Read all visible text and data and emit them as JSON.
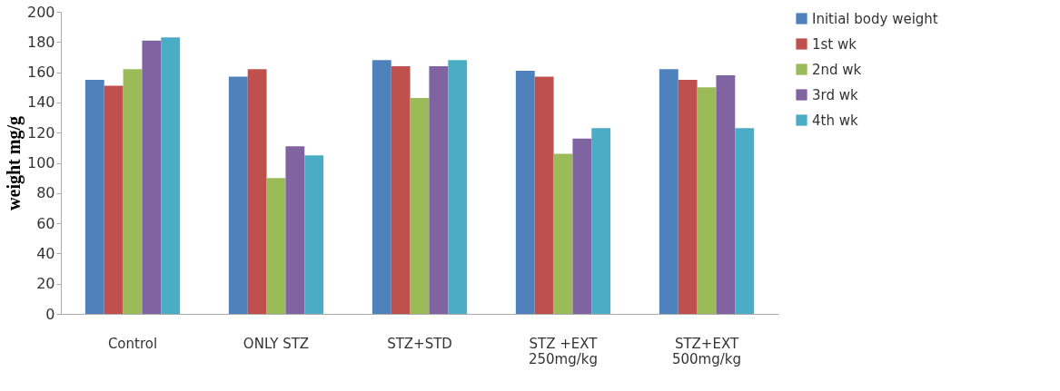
{
  "chart_data": {
    "type": "bar",
    "ylabel": "weight mg/g",
    "categories": [
      "Control",
      "ONLY STZ",
      "STZ+STD",
      "STZ +EXT\n250mg/kg",
      "STZ+EXT\n500mg/kg"
    ],
    "series": [
      {
        "name": "Initial body weight",
        "color": "#4f81bd",
        "values": [
          155,
          157,
          168,
          161,
          162
        ]
      },
      {
        "name": "1st wk",
        "color": "#c0504d",
        "values": [
          151,
          162,
          164,
          157,
          155
        ]
      },
      {
        "name": "2nd wk",
        "color": "#9bbb59",
        "values": [
          162,
          90,
          143,
          106,
          150
        ]
      },
      {
        "name": "3rd wk",
        "color": "#8064a2",
        "values": [
          181,
          111,
          164,
          116,
          158
        ]
      },
      {
        "name": "4th wk",
        "color": "#4bacc6",
        "values": [
          183,
          105,
          168,
          123,
          123
        ]
      }
    ],
    "ylim": [
      0,
      200
    ],
    "yticks": [
      0,
      20,
      40,
      60,
      80,
      100,
      120,
      140,
      160,
      180,
      200
    ],
    "grid": false,
    "legend": "right"
  }
}
